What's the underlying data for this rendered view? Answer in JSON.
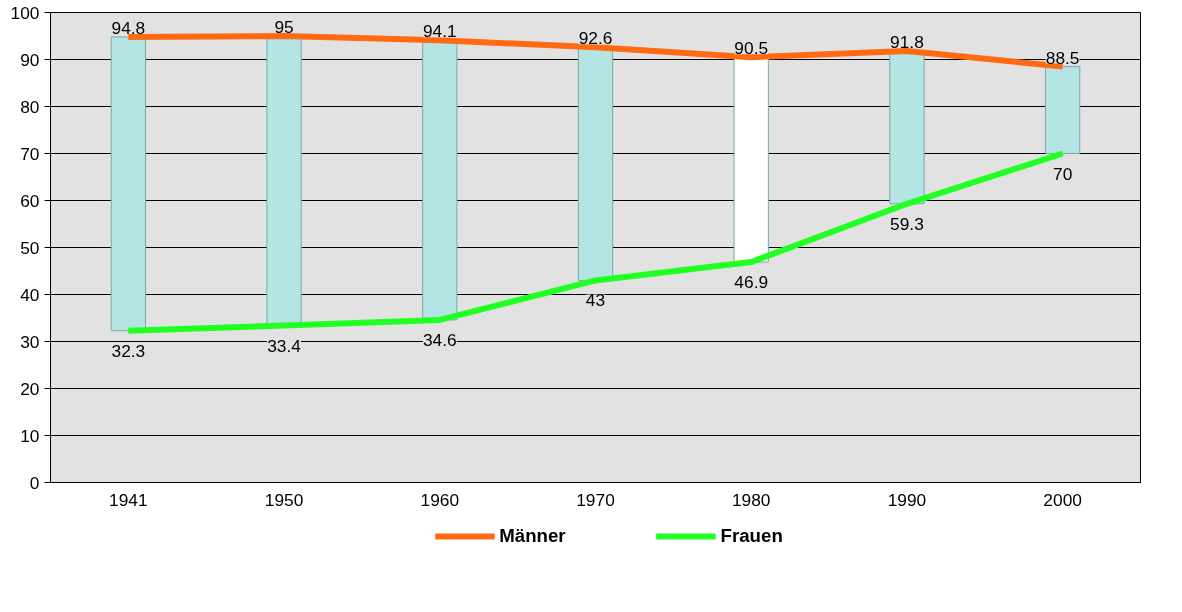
{
  "chart_data": {
    "type": "line",
    "categories": [
      "1941",
      "1950",
      "1960",
      "1970",
      "1980",
      "1990",
      "2000"
    ],
    "ylim": [
      0,
      100
    ],
    "yticks": [
      0,
      10,
      20,
      30,
      40,
      50,
      60,
      70,
      80,
      90,
      100
    ],
    "grid": "y",
    "legend": "bottom",
    "series": [
      {
        "type": "bar",
        "base": [
          32.3,
          33.4,
          34.6,
          43,
          46.9,
          59.3,
          70
        ],
        "values": [
          62.5,
          61.6,
          59.5,
          49.6,
          43.6,
          32.5,
          18.5
        ],
        "colors": [
          "#b4e4e4",
          "#b4e4e4",
          "#b4e4e4",
          "#b4e4e4",
          "#ffffff",
          "#b4e4e4",
          "#b4e4e4"
        ]
      },
      {
        "name": "Männer",
        "color": "#ff6a13",
        "values": [
          94.8,
          95,
          94.1,
          92.6,
          90.5,
          91.8,
          88.5
        ],
        "value_labels": [
          "94.8",
          "95",
          "94.1",
          "92.6",
          "90.5",
          "91.8",
          "88.5"
        ]
      },
      {
        "name": "Frauen",
        "color": "#22ff22",
        "values": [
          32.3,
          33.4,
          34.6,
          43,
          46.9,
          59.3,
          70
        ],
        "value_labels": [
          "32.3",
          "33.4",
          "34.6",
          "43",
          "46.9",
          "59.3",
          "70"
        ]
      }
    ]
  }
}
